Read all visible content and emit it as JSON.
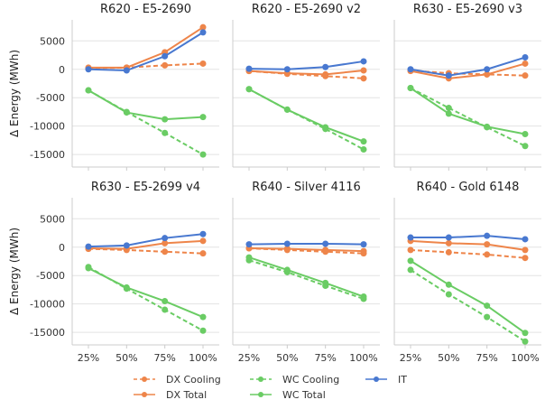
{
  "chart_data": [
    {
      "type": "line",
      "title": "R620 - E5-2690",
      "ylabel": "Δ Energy (MWh)",
      "ylim": [
        -17200,
        8700
      ],
      "yticks": [
        -15000,
        -10000,
        -5000,
        0,
        5000
      ],
      "grid": true,
      "series": [
        {
          "name": "DX Cooling",
          "color": "#ee854a",
          "dashed": true,
          "values": [
            200,
            300,
            700,
            1000
          ]
        },
        {
          "name": "DX Total",
          "color": "#ee854a",
          "dashed": false,
          "values": [
            300,
            300,
            3000,
            7400
          ]
        },
        {
          "name": "WC Cooling",
          "color": "#6acc64",
          "dashed": true,
          "values": [
            -3700,
            -7500,
            -11200,
            -15000
          ]
        },
        {
          "name": "WC Total",
          "color": "#6acc64",
          "dashed": false,
          "values": [
            -3700,
            -7600,
            -8800,
            -8400
          ]
        },
        {
          "name": "IT",
          "color": "#4878d0",
          "dashed": false,
          "values": [
            0,
            -200,
            2300,
            6500
          ]
        }
      ]
    },
    {
      "type": "line",
      "title": "R620 - E5-2690 v2",
      "ylim": [
        -17200,
        8700
      ],
      "yticks": [
        -15000,
        -10000,
        -5000,
        0,
        5000
      ],
      "grid": true,
      "series": [
        {
          "name": "DX Cooling",
          "color": "#ee854a",
          "dashed": true,
          "values": [
            -300,
            -800,
            -1200,
            -1600
          ]
        },
        {
          "name": "DX Total",
          "color": "#ee854a",
          "dashed": false,
          "values": [
            -300,
            -700,
            -900,
            -200
          ]
        },
        {
          "name": "WC Cooling",
          "color": "#6acc64",
          "dashed": true,
          "values": [
            -3500,
            -7100,
            -10500,
            -14100
          ]
        },
        {
          "name": "WC Total",
          "color": "#6acc64",
          "dashed": false,
          "values": [
            -3500,
            -7100,
            -10200,
            -12700
          ]
        },
        {
          "name": "IT",
          "color": "#4878d0",
          "dashed": false,
          "values": [
            100,
            0,
            400,
            1400
          ]
        }
      ]
    },
    {
      "type": "line",
      "title": "R630 - E5-2690 v3",
      "ylim": [
        -17200,
        8700
      ],
      "yticks": [
        -15000,
        -10000,
        -5000,
        0,
        5000
      ],
      "grid": true,
      "series": [
        {
          "name": "DX Cooling",
          "color": "#ee854a",
          "dashed": true,
          "values": [
            -200,
            -700,
            -900,
            -1100
          ]
        },
        {
          "name": "DX Total",
          "color": "#ee854a",
          "dashed": false,
          "values": [
            -300,
            -1600,
            -900,
            1000
          ]
        },
        {
          "name": "WC Cooling",
          "color": "#6acc64",
          "dashed": true,
          "values": [
            -3300,
            -6800,
            -10200,
            -13500
          ]
        },
        {
          "name": "WC Total",
          "color": "#6acc64",
          "dashed": false,
          "values": [
            -3300,
            -7800,
            -10100,
            -11400
          ]
        },
        {
          "name": "IT",
          "color": "#4878d0",
          "dashed": false,
          "values": [
            0,
            -1100,
            0,
            2100
          ]
        }
      ]
    },
    {
      "type": "line",
      "title": "R630 - E5-2699 v4",
      "ylabel": "Δ Energy (MWh)",
      "categories": [
        "25%",
        "50%",
        "75%",
        "100%"
      ],
      "ylim": [
        -17200,
        8700
      ],
      "yticks": [
        -15000,
        -10000,
        -5000,
        0,
        5000
      ],
      "grid": true,
      "series": [
        {
          "name": "DX Cooling",
          "color": "#ee854a",
          "dashed": true,
          "values": [
            -300,
            -500,
            -800,
            -1100
          ]
        },
        {
          "name": "DX Total",
          "color": "#ee854a",
          "dashed": false,
          "values": [
            -200,
            -300,
            700,
            1100
          ]
        },
        {
          "name": "WC Cooling",
          "color": "#6acc64",
          "dashed": true,
          "values": [
            -3500,
            -7300,
            -11000,
            -14700
          ]
        },
        {
          "name": "WC Total",
          "color": "#6acc64",
          "dashed": false,
          "values": [
            -3700,
            -7100,
            -9500,
            -12300
          ]
        },
        {
          "name": "IT",
          "color": "#4878d0",
          "dashed": false,
          "values": [
            100,
            300,
            1600,
            2300
          ]
        }
      ]
    },
    {
      "type": "line",
      "title": "R640 - Silver 4116",
      "categories": [
        "25%",
        "50%",
        "75%",
        "100%"
      ],
      "ylim": [
        -17200,
        8700
      ],
      "yticks": [
        -15000,
        -10000,
        -5000,
        0,
        5000
      ],
      "grid": true,
      "series": [
        {
          "name": "DX Cooling",
          "color": "#ee854a",
          "dashed": true,
          "values": [
            -200,
            -500,
            -800,
            -1100
          ]
        },
        {
          "name": "DX Total",
          "color": "#ee854a",
          "dashed": false,
          "values": [
            -200,
            -300,
            -500,
            -700
          ]
        },
        {
          "name": "WC Cooling",
          "color": "#6acc64",
          "dashed": true,
          "values": [
            -2300,
            -4400,
            -6800,
            -9100
          ]
        },
        {
          "name": "WC Total",
          "color": "#6acc64",
          "dashed": false,
          "values": [
            -1800,
            -4000,
            -6300,
            -8700
          ]
        },
        {
          "name": "IT",
          "color": "#4878d0",
          "dashed": false,
          "values": [
            500,
            600,
            600,
            500
          ]
        }
      ]
    },
    {
      "type": "line",
      "title": "R640 - Gold 6148",
      "categories": [
        "25%",
        "50%",
        "75%",
        "100%"
      ],
      "ylim": [
        -17200,
        8700
      ],
      "yticks": [
        -15000,
        -10000,
        -5000,
        0,
        5000
      ],
      "grid": true,
      "series": [
        {
          "name": "DX Cooling",
          "color": "#ee854a",
          "dashed": true,
          "values": [
            -500,
            -900,
            -1300,
            -1900
          ]
        },
        {
          "name": "DX Total",
          "color": "#ee854a",
          "dashed": false,
          "values": [
            1100,
            700,
            500,
            -500
          ]
        },
        {
          "name": "WC Cooling",
          "color": "#6acc64",
          "dashed": true,
          "values": [
            -4000,
            -8300,
            -12300,
            -16600
          ]
        },
        {
          "name": "WC Total",
          "color": "#6acc64",
          "dashed": false,
          "values": [
            -2400,
            -6600,
            -10300,
            -15100
          ]
        },
        {
          "name": "IT",
          "color": "#4878d0",
          "dashed": false,
          "values": [
            1700,
            1700,
            2000,
            1400
          ]
        }
      ]
    }
  ]
}
